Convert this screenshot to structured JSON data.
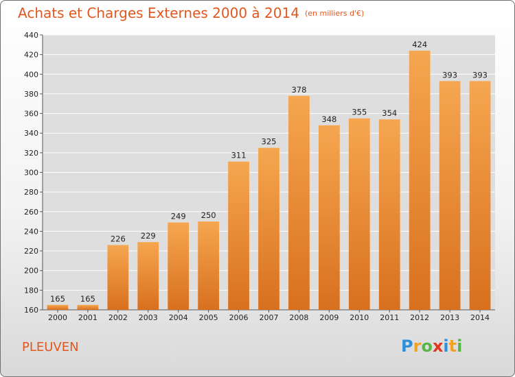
{
  "chart_data": {
    "type": "bar",
    "title": "Achats et Charges Externes 2000 à 2014",
    "subtitle": "(en milliers d'€)",
    "categories": [
      "2000",
      "2001",
      "2002",
      "2003",
      "2004",
      "2005",
      "2006",
      "2007",
      "2008",
      "2009",
      "2010",
      "2011",
      "2012",
      "2013",
      "2014"
    ],
    "values": [
      165,
      165,
      226,
      229,
      249,
      250,
      311,
      325,
      378,
      348,
      355,
      354,
      424,
      393,
      393
    ],
    "ylim": [
      160,
      440
    ],
    "yticks": [
      160,
      180,
      200,
      220,
      240,
      260,
      280,
      300,
      320,
      340,
      360,
      380,
      400,
      420,
      440
    ],
    "xlabel": "",
    "ylabel": "",
    "grid": true,
    "bar_color_top": "#f6a650",
    "bar_color_bottom": "#d8701e"
  },
  "footer": {
    "place": "PLEUVEN",
    "brand_letters": [
      {
        "ch": "P",
        "color": "#2f8fd8"
      },
      {
        "ch": "r",
        "color": "#f2a21e"
      },
      {
        "ch": "o",
        "color": "#5ab548"
      },
      {
        "ch": "x",
        "color": "#e2351e"
      },
      {
        "ch": "i",
        "color": "#2f8fd8"
      },
      {
        "ch": "t",
        "color": "#f2a21e"
      },
      {
        "ch": "i",
        "color": "#5ab548"
      }
    ]
  }
}
